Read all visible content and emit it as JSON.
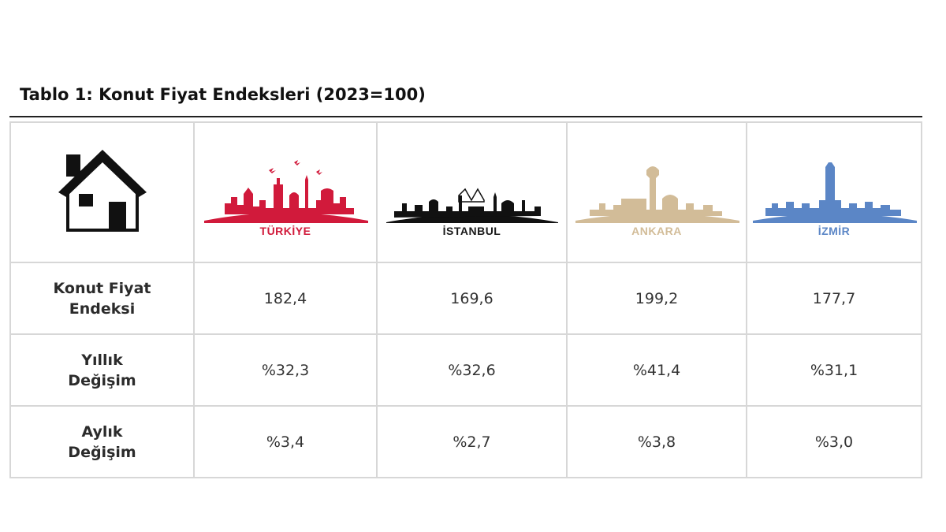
{
  "title": "Tablo 1: Konut Fiyat Endeksleri (2023=100)",
  "columns": [
    {
      "name": "TÜRKİYE",
      "color": "#d11a3b"
    },
    {
      "name": "İSTANBUL",
      "color": "#1a1a1a"
    },
    {
      "name": "ANKARA",
      "color": "#d2bc98"
    },
    {
      "name": "İZMİR",
      "color": "#5b86c6"
    }
  ],
  "header_icon": "house-icon",
  "rows": [
    {
      "label_line1": "Konut Fiyat",
      "label_line2": "Endeksi",
      "values": [
        "182,4",
        "169,6",
        "199,2",
        "177,7"
      ]
    },
    {
      "label_line1": "Yıllık",
      "label_line2": "Değişim",
      "values": [
        "%32,3",
        "%32,6",
        "%41,4",
        "%31,1"
      ]
    },
    {
      "label_line1": "Aylık",
      "label_line2": "Değişim",
      "values": [
        "%3,4",
        "%2,7",
        "%3,8",
        "%3,0"
      ]
    }
  ]
}
